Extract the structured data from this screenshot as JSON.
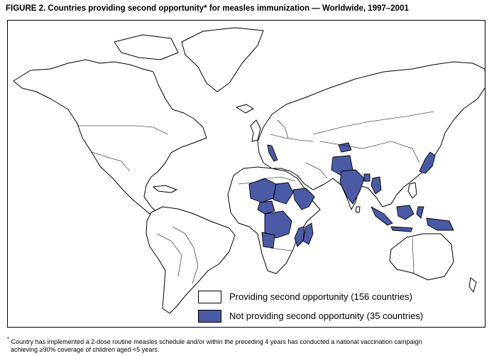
{
  "figure": {
    "title": "FIGURE 2. Countries providing second opportunity* for measles immunization — Worldwide, 1997–2001"
  },
  "legend": {
    "providing": {
      "label": "Providing second opportunity (156 countries)",
      "color": "#ffffff"
    },
    "not_providing": {
      "label": "Not providing second opportunity (35 countries)",
      "color": "#4a5aa6"
    }
  },
  "footnote": {
    "marker": "*",
    "line1": "Country has implemented a 2-dose routine measles schedule and/or within the preceding 4 years has conducted a national vaccination campaign",
    "line2": "achieving ≥90% coverage of children aged <5 years."
  }
}
